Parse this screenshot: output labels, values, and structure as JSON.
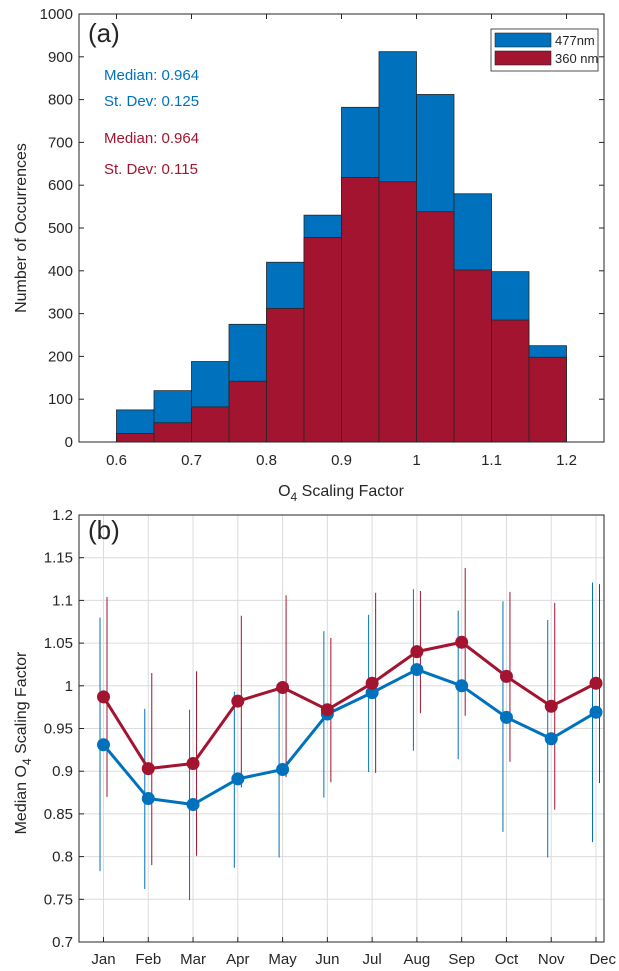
{
  "chart_data": [
    {
      "type": "bar",
      "panel_label": "(a)",
      "xlabel": {
        "base": "O",
        "sub": "4",
        "rest": " Scaling Factor"
      },
      "ylabel": "Number of Occurrences",
      "xlim": [
        0.55,
        1.25
      ],
      "ylim": [
        0,
        1000
      ],
      "xticks": [
        0.6,
        0.7,
        0.8,
        0.9,
        1,
        1.1,
        1.2
      ],
      "yticks": [
        0,
        100,
        200,
        300,
        400,
        500,
        600,
        700,
        800,
        900,
        1000
      ],
      "bin_edges": [
        0.6,
        0.65,
        0.7,
        0.75,
        0.8,
        0.85,
        0.9,
        0.95,
        1.0,
        1.05,
        1.1,
        1.15,
        1.2
      ],
      "stacked": "overlay",
      "legend_position": "top-right",
      "series": [
        {
          "name": "477nm",
          "color": "#0072bd",
          "values": [
            75,
            120,
            188,
            275,
            420,
            530,
            782,
            912,
            812,
            580,
            398,
            225
          ]
        },
        {
          "name": "360 nm",
          "color": "#a2142f",
          "values": [
            20,
            45,
            82,
            142,
            312,
            478,
            618,
            608,
            538,
            402,
            285,
            198
          ]
        }
      ],
      "annotations": [
        {
          "text": "Median: 0.964",
          "color": "#0072bd"
        },
        {
          "text": "St. Dev: 0.125",
          "color": "#0072bd"
        },
        {
          "text": "Median: 0.964",
          "color": "#a2142f"
        },
        {
          "text": "St. Dev: 0.115",
          "color": "#a2142f"
        }
      ]
    },
    {
      "type": "line",
      "panel_label": "(b)",
      "ylabel": {
        "base": "Median O",
        "sub": "4",
        "rest": " Scaling Factor"
      },
      "categories": [
        "Jan",
        "Feb",
        "Mar",
        "Apr",
        "May",
        "Jun",
        "Jul",
        "Aug",
        "Sep",
        "Oct",
        "Nov",
        "Dec"
      ],
      "ylim": [
        0.7,
        1.2
      ],
      "yticks": [
        0.7,
        0.75,
        0.8,
        0.85,
        0.9,
        0.95,
        1,
        1.05,
        1.1,
        1.15,
        1.2
      ],
      "grid": true,
      "series": [
        {
          "color": "#0072bd",
          "values": [
            0.931,
            0.868,
            0.861,
            0.891,
            0.902,
            0.967,
            0.992,
            1.019,
            1.0,
            0.963,
            0.938,
            0.969
          ],
          "err_low": [
            0.783,
            0.762,
            0.749,
            0.787,
            0.799,
            0.869,
            0.899,
            0.924,
            0.914,
            0.829,
            0.799,
            0.817
          ],
          "err_high": [
            1.08,
            0.973,
            0.972,
            0.993,
            1.0,
            1.064,
            1.083,
            1.113,
            1.088,
            1.099,
            1.077,
            1.121
          ]
        },
        {
          "color": "#a2142f",
          "values": [
            0.987,
            0.903,
            0.909,
            0.982,
            0.998,
            0.972,
            1.003,
            1.04,
            1.051,
            1.011,
            0.976,
            1.003
          ],
          "err_low": [
            0.87,
            0.79,
            0.801,
            0.881,
            0.893,
            0.887,
            0.898,
            0.968,
            0.965,
            0.911,
            0.855,
            0.886
          ],
          "err_high": [
            1.104,
            1.015,
            1.017,
            1.082,
            1.106,
            1.056,
            1.109,
            1.111,
            1.138,
            1.11,
            1.097,
            1.119
          ]
        }
      ]
    }
  ]
}
